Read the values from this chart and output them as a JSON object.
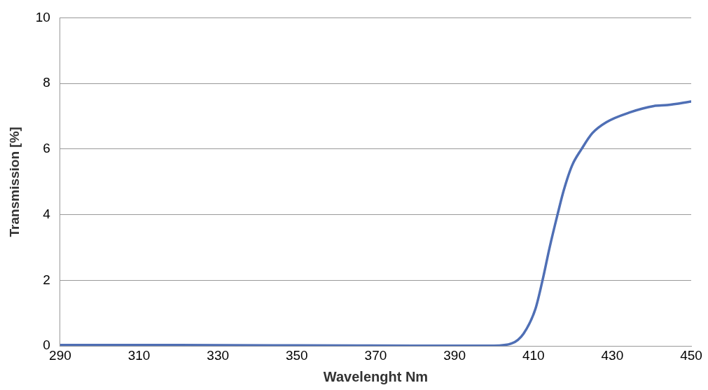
{
  "chart_data": {
    "type": "line",
    "xlabel": "Wavelenght Nm",
    "ylabel": "Transmission [%]",
    "xlim": [
      290,
      450
    ],
    "xticks": [
      290,
      310,
      330,
      350,
      370,
      390,
      410,
      430,
      450
    ],
    "ylim": [
      0,
      10
    ],
    "yticks": [
      0,
      2,
      4,
      6,
      8,
      10
    ],
    "grid": "y",
    "legend": false,
    "marker": "none",
    "line_style": "solid",
    "series": [
      {
        "color": "#4f6fb5",
        "x": [
          290,
          320,
          350,
          380,
          400,
          404.5,
          407.5,
          410.5,
          412.3,
          414.1,
          416.1,
          417.7,
          419.8,
          422.2,
          424.9,
          428.5,
          434.5,
          440.5,
          444,
          450
        ],
        "values": [
          0.03,
          0.03,
          0.02,
          0.01,
          0.01,
          0.08,
          0.38,
          1.13,
          2.0,
          3.0,
          4.0,
          4.75,
          5.5,
          6.0,
          6.48,
          6.82,
          7.12,
          7.31,
          7.34,
          7.45
        ]
      }
    ]
  }
}
